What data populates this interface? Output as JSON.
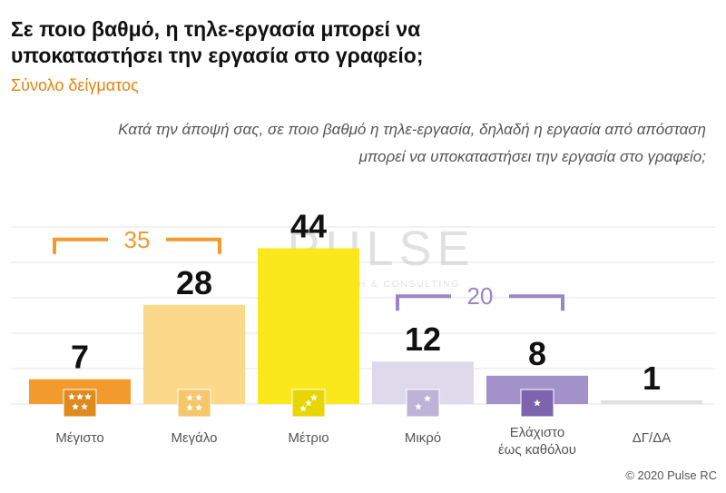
{
  "header": {
    "title": "Σε ποιο βαθμό, η τηλε-εργασία μπορεί να υποκαταστήσει την εργασία στο γραφείο;",
    "subtitle": "Σύνολο δείγματος",
    "question": "Κατά την άποψή σας, σε ποιο βαθμό η τηλε-εργασία, δηλαδή η εργασία από απόσταση μπορεί να υποκαταστήσει την εργασία στο γραφείο;"
  },
  "footer": {
    "copyright": "© 2020 Pulse RC"
  },
  "watermark": {
    "main": "PULSE",
    "sub": "RESEARCH & CONSULTING"
  },
  "chart_data": {
    "type": "bar",
    "categories": [
      [
        "Μέγιστο"
      ],
      [
        "Μεγάλο"
      ],
      [
        "Μέτριο"
      ],
      [
        "Μικρό"
      ],
      [
        "Ελάχιστο",
        "έως καθόλου"
      ],
      [
        "ΔΓ/ΔΑ"
      ]
    ],
    "values": [
      7,
      28,
      44,
      12,
      8,
      1
    ],
    "colors": [
      "#f29a2e",
      "#fcd98a",
      "#fbe81c",
      "#dedaec",
      "#a392c9",
      "#e0e0e0"
    ],
    "icon_stars": [
      5,
      4,
      3,
      2,
      1,
      0
    ],
    "icon_colors": [
      "#e08a1e",
      "#f5c66a",
      "#e8d600",
      "#bcb3d6",
      "#7e64ae",
      ""
    ],
    "ylim": [
      0,
      50
    ],
    "grid": true,
    "groups": [
      {
        "label": "35",
        "from": 0,
        "to": 1,
        "color": "#f29a2e"
      },
      {
        "label": "20",
        "from": 3,
        "to": 4,
        "color": "#9b86c4"
      }
    ]
  }
}
